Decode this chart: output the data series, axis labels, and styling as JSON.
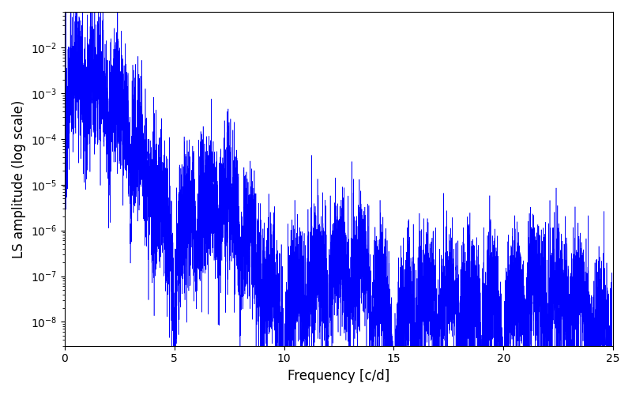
{
  "xlabel": "Frequency [c/d]",
  "ylabel": "LS amplitude (log scale)",
  "line_color": "blue",
  "xlim": [
    0,
    25
  ],
  "ylim": [
    3e-09,
    0.06
  ],
  "xticks": [
    0,
    5,
    10,
    15,
    20,
    25
  ],
  "figsize": [
    8.0,
    5.0
  ],
  "dpi": 100,
  "seed": 12345,
  "n_points": 8000,
  "freq_max": 25.0,
  "background_color": "#ffffff"
}
